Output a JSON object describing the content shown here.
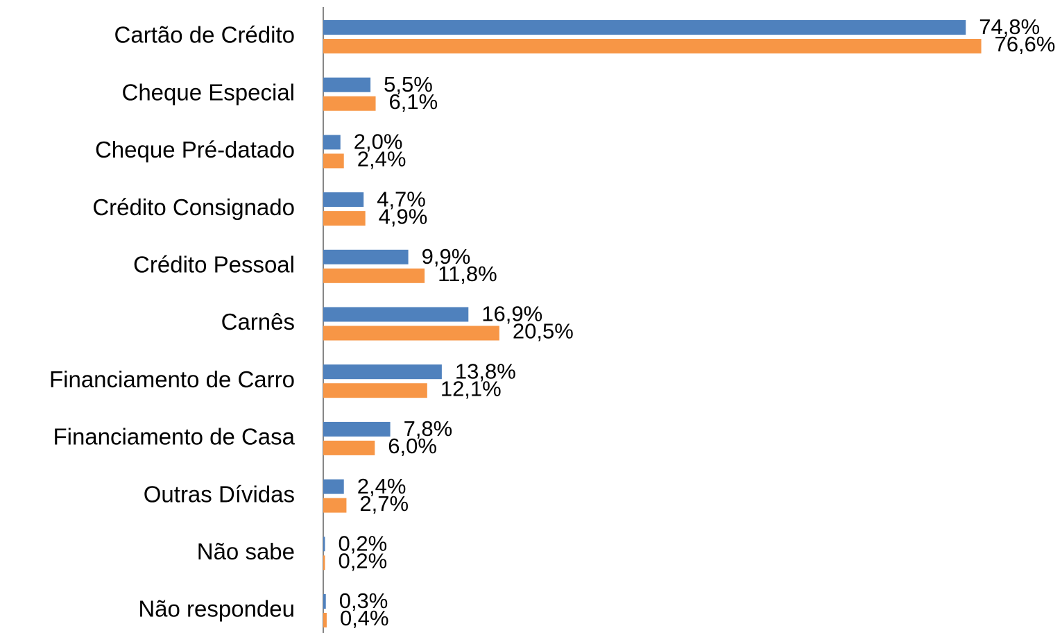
{
  "chart_data": {
    "type": "bar",
    "orientation": "horizontal",
    "categories": [
      "Cartão de Crédito",
      "Cheque Especial",
      "Cheque Pré-datado",
      "Crédito Consignado",
      "Crédito Pessoal",
      "Carnês",
      "Financiamento de Carro",
      "Financiamento de Casa",
      "Outras Dívidas",
      "Não sabe",
      "Não respondeu"
    ],
    "series": [
      {
        "color": "#4f81bd",
        "values": [
          74.8,
          5.5,
          2.0,
          4.7,
          9.9,
          16.9,
          13.8,
          7.8,
          2.4,
          0.2,
          0.3
        ],
        "value_labels": [
          "74,8%",
          "5,5%",
          "2,0%",
          "4,7%",
          "9,9%",
          "16,9%",
          "13,8%",
          "7,8%",
          "2,4%",
          "0,2%",
          "0,3%"
        ]
      },
      {
        "color": "#f79646",
        "values": [
          76.6,
          6.1,
          2.4,
          4.9,
          11.8,
          20.5,
          12.1,
          6.0,
          2.7,
          0.2,
          0.4
        ],
        "value_labels": [
          "76,6%",
          "6,1%",
          "2,4%",
          "4,9%",
          "11,8%",
          "20,5%",
          "12,1%",
          "6,0%",
          "2,7%",
          "0,2%",
          "0,4%"
        ]
      }
    ],
    "xlim": [
      0,
      86
    ]
  }
}
